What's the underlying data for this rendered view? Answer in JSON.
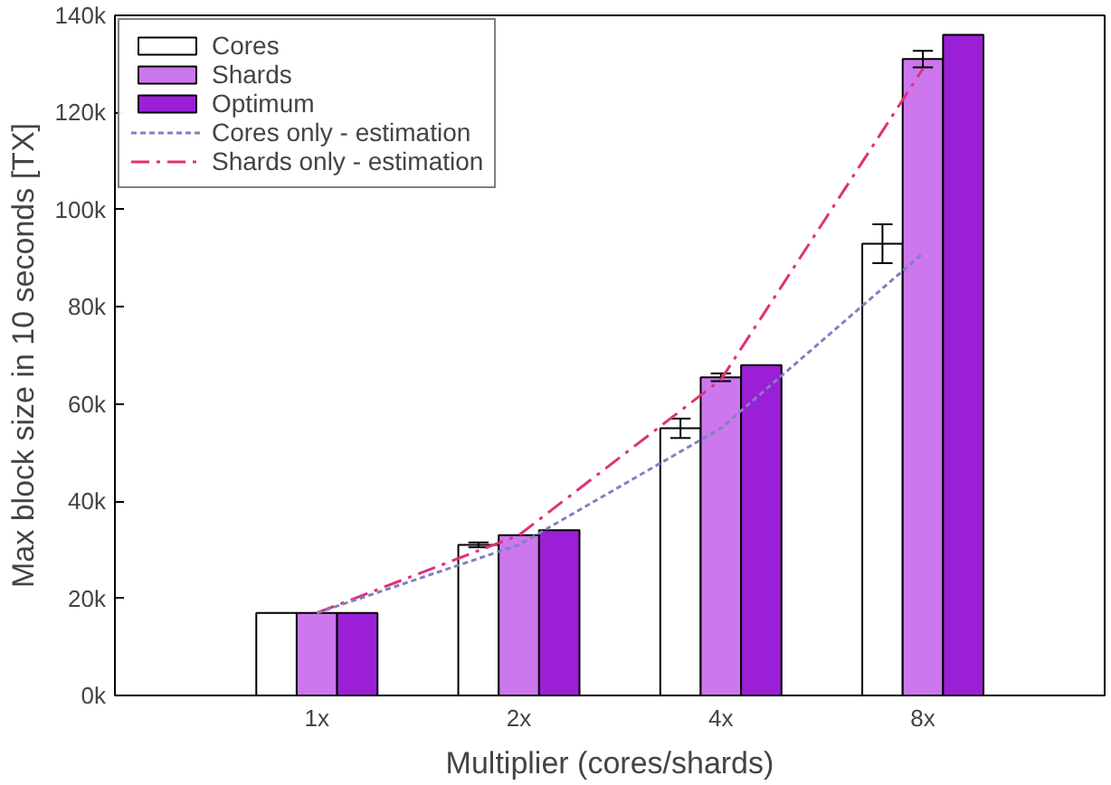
{
  "chart_data": {
    "type": "bar",
    "xlabel": "Multiplier (cores/shards)",
    "ylabel": "Max block size in 10 seconds [TX]",
    "categories": [
      "1x",
      "2x",
      "4x",
      "8x"
    ],
    "series": [
      {
        "name": "Cores",
        "color": "#ffffff",
        "values": [
          17000,
          31000,
          55000,
          93000
        ],
        "errors": [
          null,
          500,
          2000,
          4000
        ]
      },
      {
        "name": "Shards",
        "color": "#cc77ee",
        "values": [
          17000,
          33000,
          65500,
          131000
        ],
        "errors": [
          null,
          null,
          800,
          1700
        ]
      },
      {
        "name": "Optimum",
        "color": "#9b1fd6",
        "values": [
          17000,
          34000,
          68000,
          136000
        ]
      },
      {
        "name": "Cores only - estimation",
        "type": "line",
        "line_style": "dashed",
        "color": "#8080c0",
        "values": [
          17000,
          31000,
          55000,
          91000
        ]
      },
      {
        "name": "Shards only - estimation",
        "type": "line",
        "line_style": "dashdot",
        "color": "#e0307a",
        "values": [
          17000,
          33000,
          65000,
          129000
        ]
      }
    ],
    "ylim": [
      0,
      140000
    ],
    "yticks": [
      {
        "value": 0,
        "label": "0k"
      },
      {
        "value": 20000,
        "label": "20k"
      },
      {
        "value": 40000,
        "label": "40k"
      },
      {
        "value": 60000,
        "label": "60k"
      },
      {
        "value": 80000,
        "label": "80k"
      },
      {
        "value": 100000,
        "label": "100k"
      },
      {
        "value": 120000,
        "label": "120k"
      },
      {
        "value": 140000,
        "label": "140k"
      }
    ],
    "grid": false,
    "legend": "top left"
  }
}
